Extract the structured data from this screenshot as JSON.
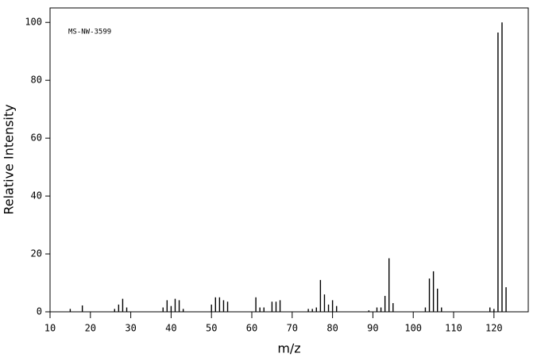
{
  "chart_data": {
    "type": "bar",
    "annotation": "MS-NW-3599",
    "x_label": "m/z",
    "y_label": "Relative Intensity",
    "x": [
      15,
      18,
      26,
      27,
      28,
      29,
      38,
      39,
      40,
      41,
      42,
      43,
      50,
      51,
      52,
      53,
      54,
      61,
      62,
      63,
      65,
      66,
      67,
      74,
      75,
      76,
      77,
      78,
      79,
      80,
      81,
      89,
      91,
      92,
      93,
      94,
      95,
      103,
      104,
      105,
      106,
      107,
      119,
      120,
      121,
      122,
      123
    ],
    "values": [
      1,
      2.2,
      1,
      2.5,
      4.5,
      1.5,
      1.5,
      4,
      2,
      4.5,
      4,
      1,
      2.5,
      5,
      5,
      4,
      3.5,
      5,
      1.5,
      1.5,
      3.5,
      3.5,
      4,
      1,
      1,
      1.5,
      11,
      6,
      2.5,
      4,
      2,
      0.5,
      1.5,
      1.5,
      5.5,
      18.5,
      3,
      1.5,
      11.5,
      14,
      8,
      1.5,
      1.5,
      1,
      96.5,
      100,
      8.5
    ],
    "color": "#000000",
    "xlim": [
      10,
      128.5
    ],
    "xticks": [
      10,
      20,
      30,
      40,
      50,
      60,
      70,
      80,
      90,
      100,
      110,
      120
    ],
    "ylim": [
      0,
      105
    ],
    "yticks": [
      0,
      20,
      40,
      60,
      80,
      100
    ]
  }
}
